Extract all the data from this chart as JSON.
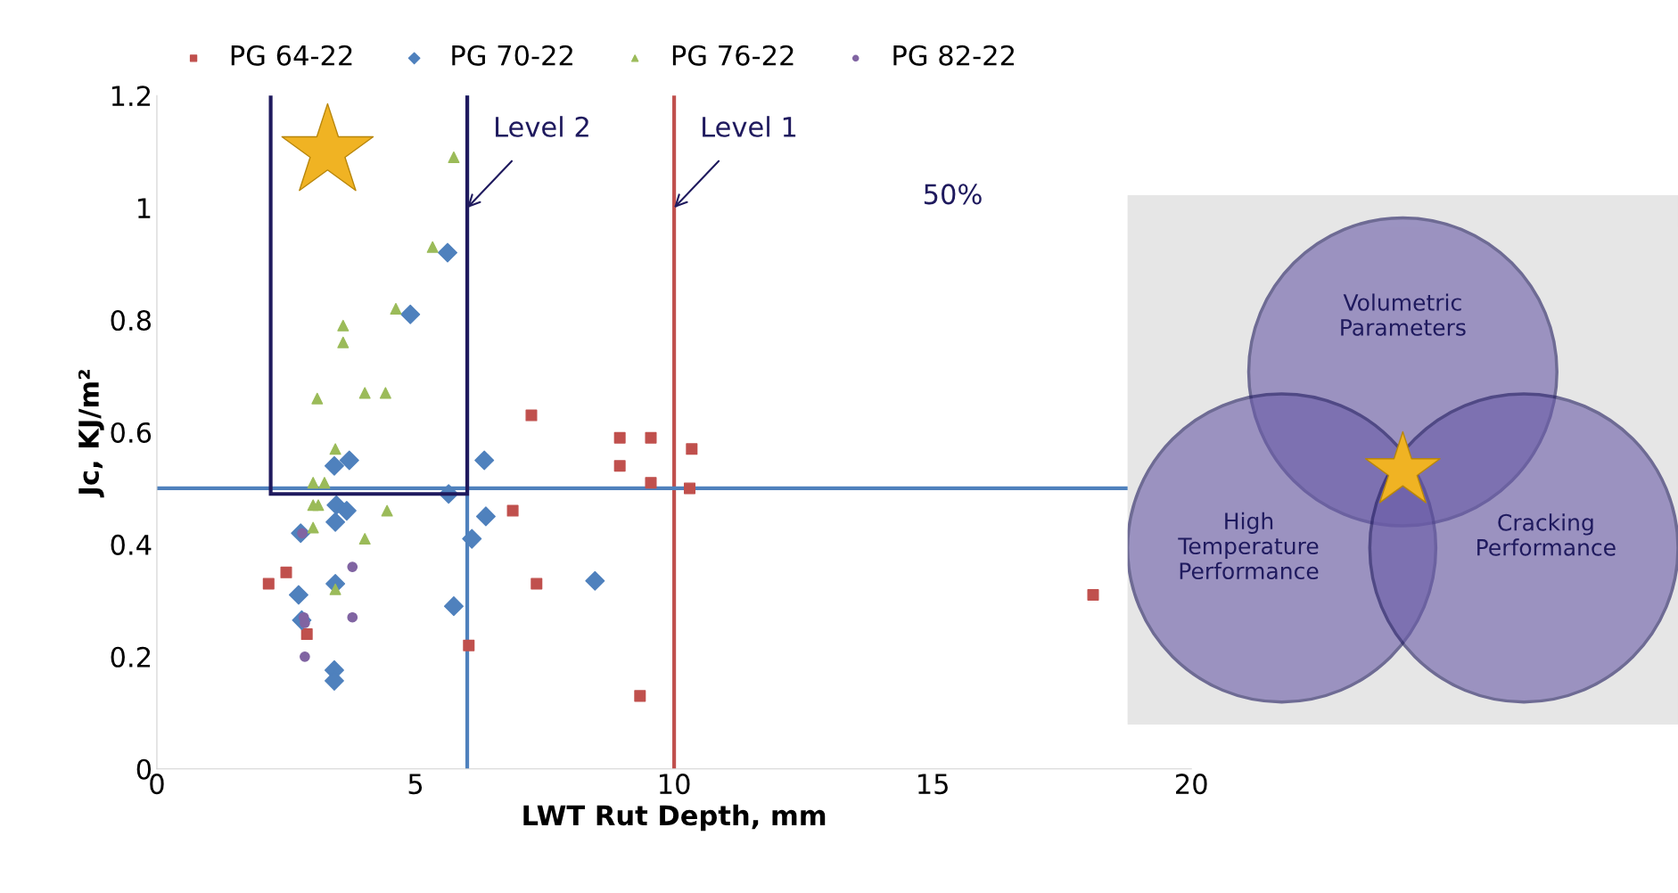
{
  "chart_data": [
    {
      "type": "scatter",
      "xlabel": "LWT Rut Depth, mm",
      "ylabel": "Jc, KJ/m²",
      "xlim": [
        0,
        20
      ],
      "xticks": [
        0,
        5,
        10,
        15,
        20
      ],
      "ylim": [
        0,
        1.2
      ],
      "yticks": [
        0,
        0.2,
        0.4,
        0.6,
        0.8,
        1,
        1.2
      ],
      "grid": false,
      "legend": "top",
      "series": [
        {
          "name": "PG 64-22",
          "color": "#c0504d",
          "marker": "square",
          "x": [
            7.24,
            8.95,
            9.55,
            8.95,
            9.55,
            10.34,
            10.3,
            6.88,
            2.16,
            2.5,
            7.34,
            2.9,
            6.03,
            9.34,
            18.1
          ],
          "values": [
            0.63,
            0.59,
            0.59,
            0.54,
            0.51,
            0.57,
            0.5,
            0.46,
            0.33,
            0.35,
            0.33,
            0.24,
            0.22,
            0.13,
            0.31
          ]
        },
        {
          "name": "PG 70-22",
          "color": "#4f81bd",
          "marker": "diamond",
          "x": [
            5.62,
            4.9,
            3.72,
            3.43,
            6.33,
            5.64,
            3.47,
            3.67,
            3.45,
            6.36,
            6.09,
            2.78,
            2.74,
            3.45,
            5.74,
            8.47,
            3.43,
            3.43,
            2.8
          ],
          "values": [
            0.92,
            0.81,
            0.55,
            0.54,
            0.55,
            0.49,
            0.47,
            0.46,
            0.44,
            0.45,
            0.41,
            0.42,
            0.31,
            0.33,
            0.29,
            0.335,
            0.176,
            0.157,
            0.265
          ]
        },
        {
          "name": "PG 76-22",
          "color": "#9bbb59",
          "marker": "triangle",
          "x": [
            5.74,
            5.33,
            4.62,
            3.6,
            3.6,
            3.1,
            4.02,
            4.42,
            3.45,
            3.02,
            3.24,
            3.02,
            3.12,
            4.45,
            3.02,
            4.02,
            3.45
          ],
          "values": [
            1.09,
            0.93,
            0.82,
            0.79,
            0.76,
            0.66,
            0.67,
            0.67,
            0.57,
            0.51,
            0.51,
            0.47,
            0.47,
            0.46,
            0.43,
            0.41,
            0.32
          ]
        },
        {
          "name": "PG 82-22",
          "color": "#8064a2",
          "marker": "circle",
          "x": [
            2.81,
            3.78,
            2.84,
            3.78,
            2.86,
            2.86
          ],
          "values": [
            0.42,
            0.36,
            0.27,
            0.27,
            0.26,
            0.2
          ]
        }
      ],
      "ref_lines": [
        {
          "axis": "x",
          "value": 6,
          "color": "#4f81bd"
        },
        {
          "axis": "x",
          "value": 10,
          "color": "#c0504d"
        },
        {
          "axis": "y",
          "value": 0.5,
          "color": "#4f81bd"
        }
      ],
      "annotations": [
        {
          "text": "Level 2",
          "x": 6,
          "y": 1.0
        },
        {
          "text": "Level 1",
          "x": 10,
          "y": 1.0
        },
        "50%"
      ]
    },
    {
      "type": "other",
      "annotations": [
        "Volumetric\nParameters",
        "High\nTemperature\nPerformance",
        "Cracking\nPerformance"
      ]
    }
  ]
}
